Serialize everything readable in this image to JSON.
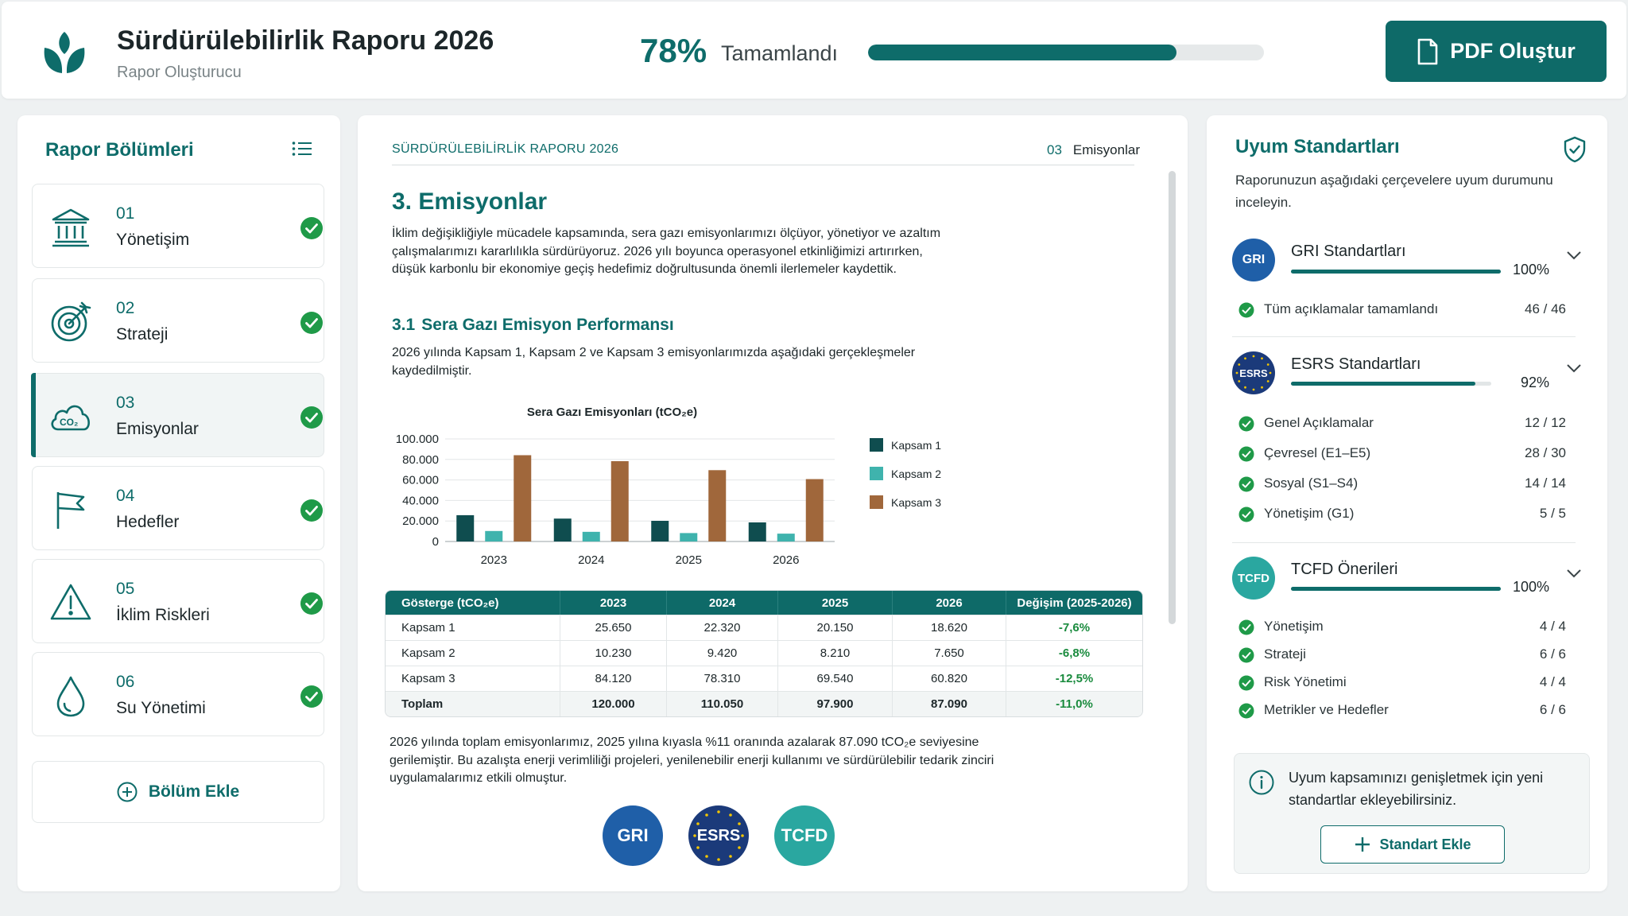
{
  "header": {
    "title": "Sürdürülebilirlik Raporu 2026",
    "subtitle": "Rapor Oluşturucu",
    "progress_pct": "78%",
    "progress_value": 78,
    "progress_label": "Tamamlandı",
    "pdf_button": "PDF Oluştur"
  },
  "sidebar": {
    "title": "Rapor Bölümleri",
    "items": [
      {
        "num": "01",
        "label": "Yönetişim",
        "icon": "bank-icon",
        "done": true
      },
      {
        "num": "02",
        "label": "Strateji",
        "icon": "target-icon",
        "done": true
      },
      {
        "num": "03",
        "label": "Emisyonlar",
        "icon": "co2-cloud-icon",
        "done": true,
        "active": true
      },
      {
        "num": "04",
        "label": "Hedefler",
        "icon": "flag-icon",
        "done": true
      },
      {
        "num": "05",
        "label": "İklim Riskleri",
        "icon": "warning-icon",
        "done": true
      },
      {
        "num": "06",
        "label": "Su Yönetimi",
        "icon": "water-drop-icon",
        "done": true
      }
    ],
    "add_button": "Bölüm Ekle"
  },
  "doc": {
    "header_left": "SÜRDÜRÜLEBİLİRLİK RAPORU 2026",
    "header_num": "03",
    "header_section": "Emisyonlar",
    "h1": "3. Emisyonlar",
    "p1": "İklim değişikliğiyle mücadele kapsamında, sera gazı emisyonlarımızı ölçüyor, yönetiyor ve azaltım çalışmalarımızı kararlılıkla sürdürüyoruz. 2026 yılı boyunca operasyonel etkinliğimizi artırırken, düşük karbonlu bir ekonomiye geçiş hedefimiz doğrultusunda önemli ilerlemeler kaydettik.",
    "h2_num": "3.1",
    "h2": "Sera Gazı Emisyon Performansı",
    "p2": "2026 yılında Kapsam 1, Kapsam 2 ve Kapsam 3 emisyonlarımızda aşağıdaki gerçekleşmeler kaydedilmiştir.",
    "p3": "2026 yılında toplam emisyonlarımız, 2025 yılına kıyasla %11 oranında azalarak 87.090 tCO₂e seviyesine gerilemiştir. Bu azalışta enerji verimliliği projeleri, yenilenebilir enerji kullanımı ve sürdürülebilir tedarik zinciri uygulamalarımız etkili olmuştur.",
    "badges": [
      "GRI",
      "ESRS",
      "TCFD"
    ]
  },
  "chart_data": {
    "type": "bar",
    "title": "Sera Gazı Emisyonları (tCO₂e)",
    "categories": [
      "2023",
      "2024",
      "2025",
      "2026"
    ],
    "series": [
      {
        "name": "Kapsam 1",
        "values": [
          25650,
          22320,
          20150,
          18620
        ],
        "color": "#0f4d4f"
      },
      {
        "name": "Kapsam 2",
        "values": [
          10230,
          9420,
          8210,
          7650
        ],
        "color": "#3fb3ad"
      },
      {
        "name": "Kapsam 3",
        "values": [
          84120,
          78310,
          69540,
          60820
        ],
        "color": "#a0673b"
      }
    ],
    "ylim": [
      0,
      100000
    ],
    "yticks": [
      0,
      20000,
      40000,
      60000,
      80000,
      100000
    ],
    "ytick_labels": [
      "0",
      "20.000",
      "40.000",
      "60.000",
      "80.000",
      "100.000"
    ],
    "legend": "right",
    "grid": true
  },
  "table": {
    "headers": [
      "Gösterge (tCO₂e)",
      "2023",
      "2024",
      "2025",
      "2026",
      "Değişim (2025-2026)"
    ],
    "rows": [
      [
        "Kapsam 1",
        "25.650",
        "22.320",
        "20.150",
        "18.620",
        "-7,6%"
      ],
      [
        "Kapsam 2",
        "10.230",
        "9.420",
        "8.210",
        "7.650",
        "-6,8%"
      ],
      [
        "Kapsam 3",
        "84.120",
        "78.310",
        "69.540",
        "60.820",
        "-12,5%"
      ],
      [
        "Toplam",
        "120.000",
        "110.050",
        "97.900",
        "87.090",
        "-11,0%"
      ]
    ]
  },
  "compliance": {
    "title": "Uyum Standartları",
    "description": "Raporunuzun aşağıdaki çerçevelere uyum durumunu inceleyin.",
    "standards": [
      {
        "badge": "GRI",
        "name": "GRI Standartları",
        "pct": "100%",
        "value": 100,
        "color": "#1f5fa8",
        "items": [
          {
            "label": "Tüm açıklamalar tamamlandı",
            "count": "46 / 46"
          }
        ]
      },
      {
        "badge": "ESRS",
        "name": "ESRS Standartları",
        "pct": "92%",
        "value": 92,
        "color": "#1b3a7a",
        "items": [
          {
            "label": "Genel Açıklamalar",
            "count": "12 / 12"
          },
          {
            "label": "Çevresel (E1–E5)",
            "count": "28 / 30"
          },
          {
            "label": "Sosyal (S1–S4)",
            "count": "14 / 14"
          },
          {
            "label": "Yönetişim (G1)",
            "count": "5 / 5"
          }
        ]
      },
      {
        "badge": "TCFD",
        "name": "TCFD Önerileri",
        "pct": "100%",
        "value": 100,
        "color": "#2aa7a0",
        "items": [
          {
            "label": "Yönetişim",
            "count": "4 / 4"
          },
          {
            "label": "Strateji",
            "count": "6 / 6"
          },
          {
            "label": "Risk Yönetimi",
            "count": "4 / 4"
          },
          {
            "label": "Metrikler ve Hedefler",
            "count": "6 / 6"
          }
        ]
      }
    ],
    "info_text": "Uyum kapsamınızı genişletmek için yeni standartlar ekleyebilirsiniz.",
    "add_button": "Standart Ekle"
  }
}
